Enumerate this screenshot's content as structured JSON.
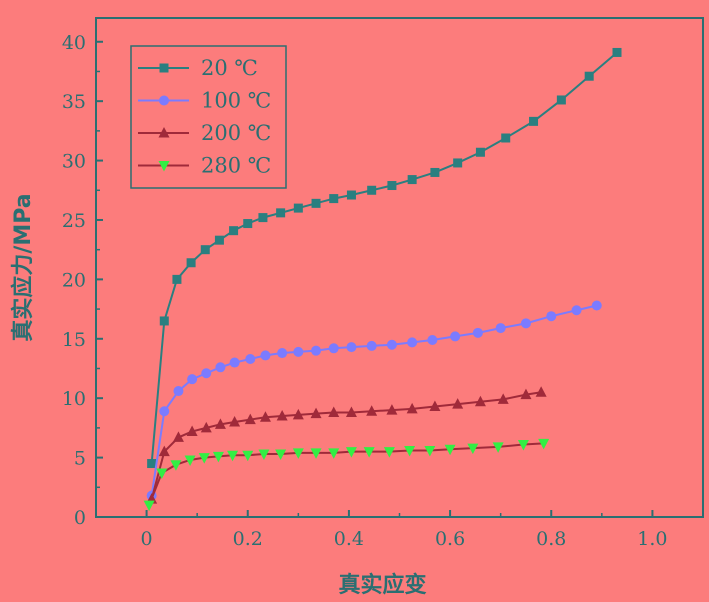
{
  "chart_data": {
    "type": "line",
    "title": "",
    "xlabel": "真实应变",
    "ylabel": "真实应力/MPa",
    "xlim": [
      -0.1,
      1.1
    ],
    "ylim": [
      0,
      42
    ],
    "xticks": [
      0,
      0.2,
      0.4,
      0.6,
      0.8,
      1.0
    ],
    "xtick_labels": [
      "0",
      "0.2",
      "0.4",
      "0.6",
      "0.8",
      "1.0"
    ],
    "yticks": [
      0,
      5,
      10,
      15,
      20,
      25,
      30,
      35,
      40
    ],
    "ytick_labels": [
      "0",
      "5",
      "10",
      "15",
      "20",
      "25",
      "30",
      "35",
      "40"
    ],
    "grid": false,
    "legend_position": "top-left",
    "axis_color": "#2a6f72",
    "series": [
      {
        "name": "20 ℃",
        "color": "#2a7f80",
        "marker": "square",
        "x": [
          0.01,
          0.035,
          0.06,
          0.088,
          0.116,
          0.144,
          0.172,
          0.2,
          0.23,
          0.265,
          0.3,
          0.335,
          0.37,
          0.405,
          0.445,
          0.485,
          0.525,
          0.57,
          0.615,
          0.66,
          0.71,
          0.765,
          0.82,
          0.875,
          0.93
        ],
        "y": [
          4.5,
          16.5,
          20.0,
          21.4,
          22.5,
          23.3,
          24.1,
          24.7,
          25.2,
          25.6,
          26.0,
          26.4,
          26.8,
          27.1,
          27.5,
          27.9,
          28.4,
          29.0,
          29.8,
          30.7,
          31.9,
          33.3,
          35.1,
          37.1,
          39.1
        ]
      },
      {
        "name": "100 ℃",
        "color": "#7b7bff",
        "marker": "circle",
        "x": [
          0.01,
          0.035,
          0.063,
          0.09,
          0.118,
          0.146,
          0.174,
          0.205,
          0.235,
          0.268,
          0.3,
          0.335,
          0.37,
          0.405,
          0.445,
          0.485,
          0.525,
          0.565,
          0.61,
          0.655,
          0.7,
          0.75,
          0.8,
          0.85,
          0.89
        ],
        "y": [
          1.8,
          8.9,
          10.6,
          11.6,
          12.1,
          12.6,
          13.0,
          13.3,
          13.6,
          13.8,
          13.9,
          14.0,
          14.2,
          14.3,
          14.4,
          14.5,
          14.7,
          14.9,
          15.2,
          15.5,
          15.9,
          16.3,
          16.9,
          17.4,
          17.8
        ]
      },
      {
        "name": "200 ℃",
        "color": "#a02a3a",
        "marker": "triangle-up",
        "x": [
          0.01,
          0.035,
          0.063,
          0.09,
          0.118,
          0.146,
          0.174,
          0.205,
          0.235,
          0.268,
          0.3,
          0.335,
          0.37,
          0.405,
          0.445,
          0.485,
          0.525,
          0.57,
          0.615,
          0.66,
          0.705,
          0.75,
          0.78
        ],
        "y": [
          1.5,
          5.5,
          6.7,
          7.2,
          7.5,
          7.8,
          8.0,
          8.2,
          8.4,
          8.5,
          8.6,
          8.7,
          8.8,
          8.8,
          8.9,
          9.0,
          9.1,
          9.3,
          9.5,
          9.7,
          9.9,
          10.3,
          10.5
        ]
      },
      {
        "name": "280 ℃",
        "color": "#33ee44",
        "marker": "triangle-down",
        "x": [
          0.005,
          0.03,
          0.058,
          0.086,
          0.114,
          0.142,
          0.17,
          0.2,
          0.232,
          0.265,
          0.3,
          0.335,
          0.37,
          0.405,
          0.44,
          0.48,
          0.52,
          0.56,
          0.6,
          0.645,
          0.695,
          0.745,
          0.785
        ],
        "y": [
          1.0,
          3.7,
          4.4,
          4.8,
          5.0,
          5.1,
          5.2,
          5.2,
          5.3,
          5.3,
          5.4,
          5.4,
          5.4,
          5.5,
          5.5,
          5.5,
          5.6,
          5.6,
          5.7,
          5.8,
          5.9,
          6.1,
          6.2
        ]
      }
    ],
    "lines": [
      {
        "color": "#2a7f80"
      },
      {
        "color": "#7b7bff"
      },
      {
        "color": "#a02a3a"
      },
      {
        "color": "#a02a3a"
      }
    ]
  }
}
